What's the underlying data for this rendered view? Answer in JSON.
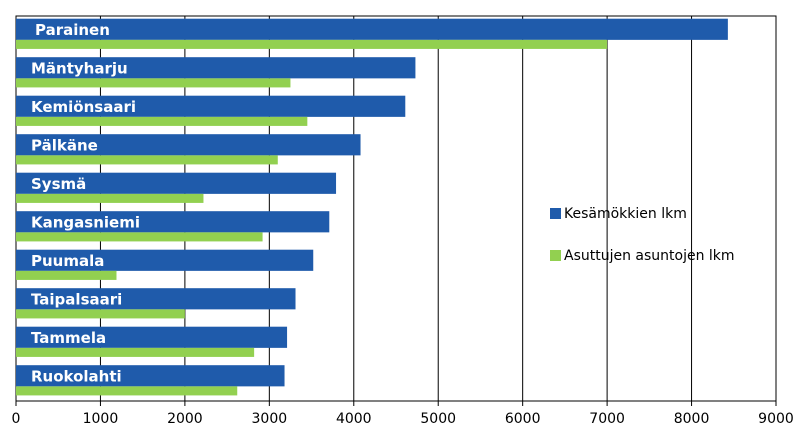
{
  "chart_data": {
    "type": "bar",
    "orientation": "horizontal",
    "categories": [
      "Parainen",
      "Mäntyharju",
      "Kemiönsaari",
      "Pälkäne",
      "Sysmä",
      "Kangasniemi",
      "Puumala",
      "Taipalsaari",
      "Tammela",
      "Ruokolahti"
    ],
    "series": [
      {
        "name": "Kesämökkien lkm",
        "color": "#1f5bab",
        "values": [
          8430,
          4730,
          4610,
          4080,
          3790,
          3710,
          3520,
          3310,
          3210,
          3180
        ]
      },
      {
        "name": "Asuttujen asuntojen lkm",
        "color": "#92d050",
        "values": [
          7000,
          3250,
          3450,
          3100,
          2220,
          2920,
          1190,
          2000,
          2820,
          2620
        ]
      }
    ],
    "xlim": [
      0,
      9000
    ],
    "xticks": [
      "0",
      "1000",
      "2000",
      "3000",
      "4000",
      "5000",
      "6000",
      "7000",
      "8000",
      "9000"
    ],
    "grid": "vertical",
    "legend_position": "right"
  }
}
